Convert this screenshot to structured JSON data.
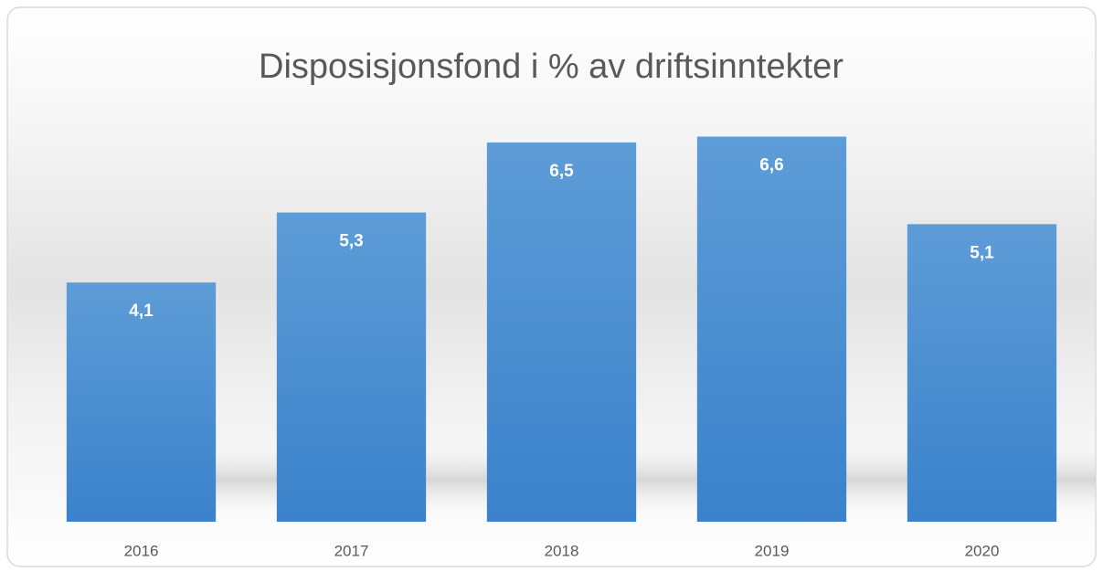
{
  "chart_data": {
    "type": "bar",
    "title": "Disposisjonsfond i % av driftsinntekter",
    "categories": [
      "2016",
      "2017",
      "2018",
      "2019",
      "2020"
    ],
    "values": [
      4.1,
      5.3,
      6.5,
      6.6,
      5.1
    ],
    "value_labels": [
      "4,1",
      "5,3",
      "6,5",
      "6,6",
      "5,1"
    ],
    "color": "#4a8fd3",
    "ylim": [
      0,
      7
    ],
    "grid": false
  }
}
